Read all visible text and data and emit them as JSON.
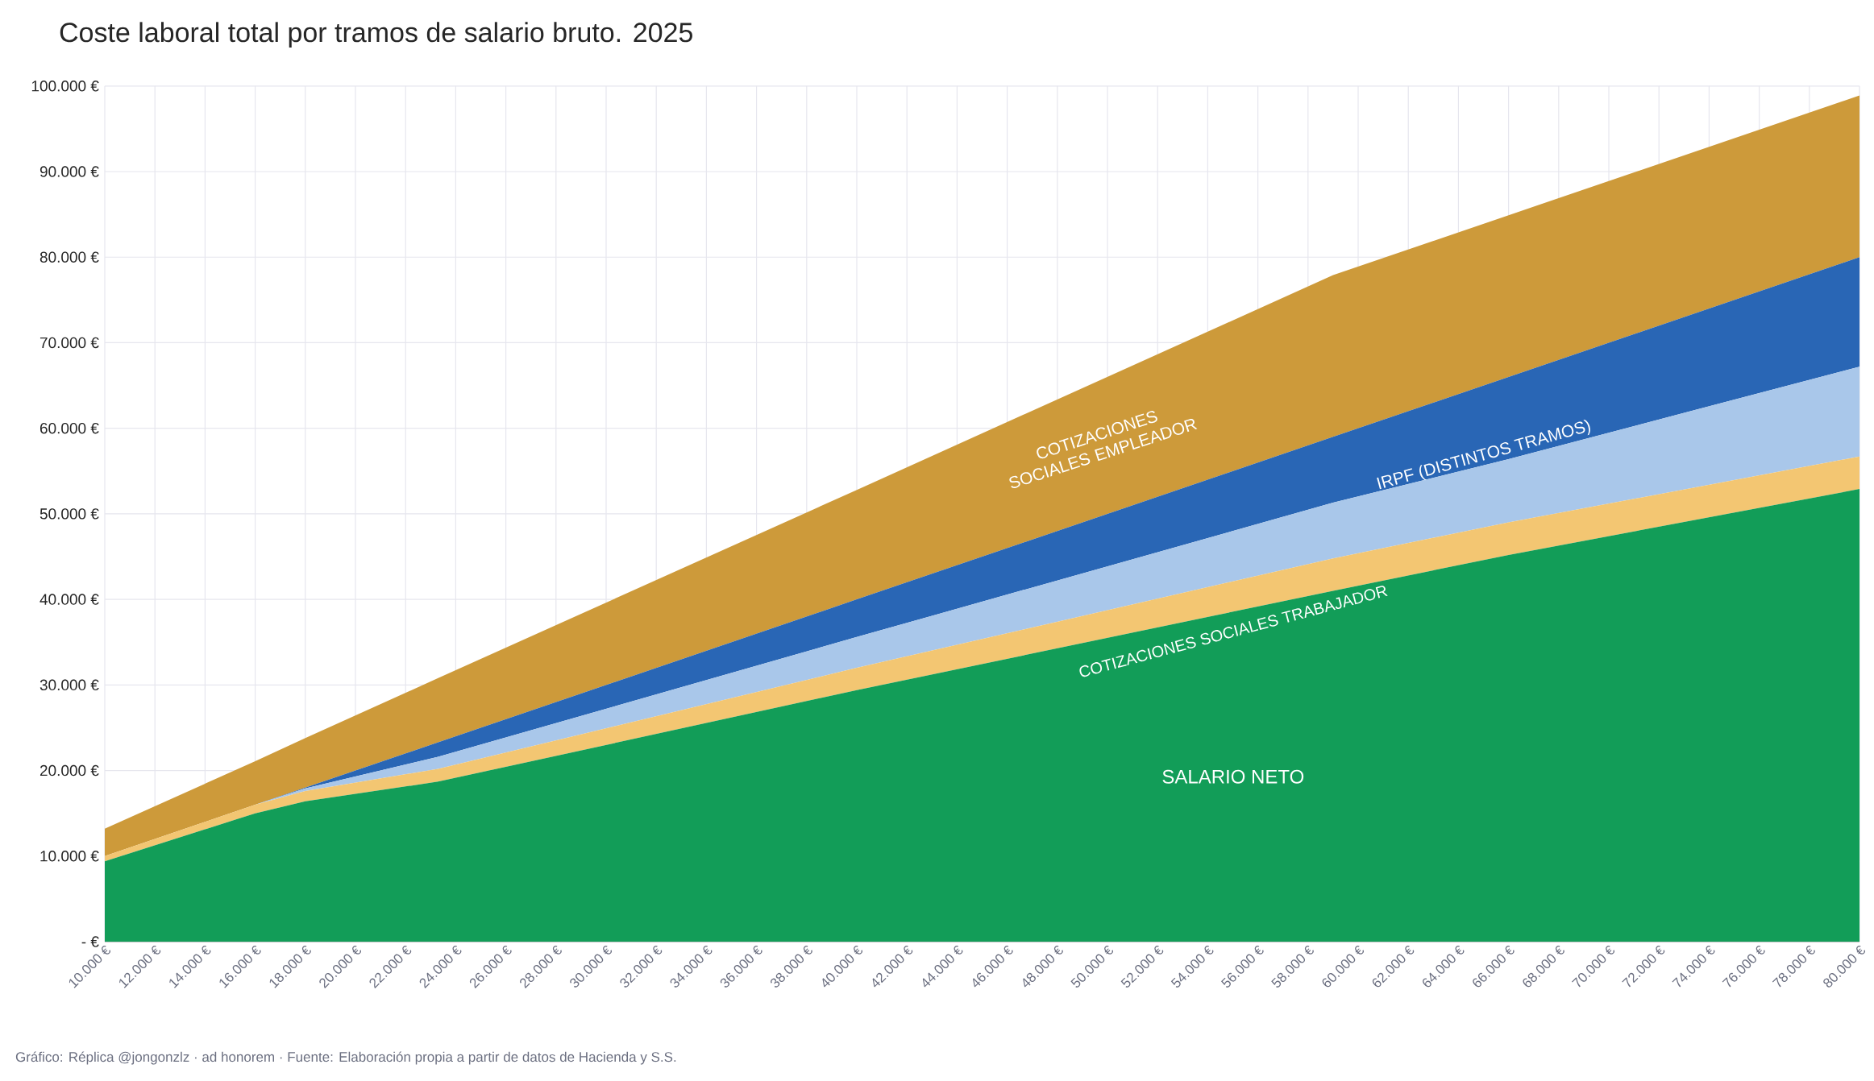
{
  "chart_data": {
    "type": "area",
    "stacked": true,
    "title": "Coste laboral total por tramos de salario bruto. 2025",
    "x": [
      10000,
      16000,
      18000,
      23300,
      40000,
      59000,
      66000,
      80000
    ],
    "series": [
      {
        "name": "SALARIO NETO",
        "color": "#129d58",
        "values": [
          9400,
          15000,
          16400,
          18700,
          29400,
          41000,
          45200,
          52900
        ]
      },
      {
        "name": "COTIZACIONES SOCIALES TRABAJADOR",
        "color": "#f3c672",
        "values": [
          600,
          1000,
          1200,
          1500,
          2600,
          3800,
          3800,
          3800
        ]
      },
      {
        "color": "#a9c7ea",
        "values": [
          0,
          0,
          300,
          1400,
          3600,
          6500,
          7400,
          10500
        ]
      },
      {
        "name": "IRPF (DISTINTOS TRAMOS)",
        "color": "#2966b5",
        "values": [
          0,
          0,
          100,
          1700,
          4400,
          7700,
          9600,
          12800
        ]
      },
      {
        "name": "COTIZACIONES SOCIALES EMPLEADOR",
        "color": "#cd9a3a",
        "values": [
          3200,
          5100,
          5800,
          7500,
          12800,
          18900,
          18900,
          18900
        ]
      }
    ],
    "xlim": [
      10000,
      80000
    ],
    "xticks": [
      {
        "value": 10000,
        "label": "10.000 €"
      },
      {
        "value": 12000,
        "label": "12.000 €"
      },
      {
        "value": 14000,
        "label": "14.000 €"
      },
      {
        "value": 16000,
        "label": "16.000 €"
      },
      {
        "value": 18000,
        "label": "18.000 €"
      },
      {
        "value": 20000,
        "label": "20.000 €"
      },
      {
        "value": 22000,
        "label": "22.000 €"
      },
      {
        "value": 24000,
        "label": "24.000 €"
      },
      {
        "value": 26000,
        "label": "26.000 €"
      },
      {
        "value": 28000,
        "label": "28.000 €"
      },
      {
        "value": 30000,
        "label": "30.000 €"
      },
      {
        "value": 32000,
        "label": "32.000 €"
      },
      {
        "value": 34000,
        "label": "34.000 €"
      },
      {
        "value": 36000,
        "label": "36.000 €"
      },
      {
        "value": 38000,
        "label": "38.000 €"
      },
      {
        "value": 40000,
        "label": "40.000 €"
      },
      {
        "value": 42000,
        "label": "42.000 €"
      },
      {
        "value": 44000,
        "label": "44.000 €"
      },
      {
        "value": 46000,
        "label": "46.000 €"
      },
      {
        "value": 48000,
        "label": "48.000 €"
      },
      {
        "value": 50000,
        "label": "50.000 €"
      },
      {
        "value": 52000,
        "label": "52.000 €"
      },
      {
        "value": 54000,
        "label": "54.000 €"
      },
      {
        "value": 56000,
        "label": "56.000 €"
      },
      {
        "value": 58000,
        "label": "58.000 €"
      },
      {
        "value": 60000,
        "label": "60.000 €"
      },
      {
        "value": 62000,
        "label": "62.000 €"
      },
      {
        "value": 64000,
        "label": "64.000 €"
      },
      {
        "value": 66000,
        "label": "66.000 €"
      },
      {
        "value": 68000,
        "label": "68.000 €"
      },
      {
        "value": 70000,
        "label": "70.000 €"
      },
      {
        "value": 72000,
        "label": "72.000 €"
      },
      {
        "value": 74000,
        "label": "74.000 €"
      },
      {
        "value": 76000,
        "label": "76.000 €"
      },
      {
        "value": 78000,
        "label": "78.000 €"
      },
      {
        "value": 80000,
        "label": "80.000 €"
      }
    ],
    "ylim": [
      0,
      100000
    ],
    "yticks": [
      {
        "value": 0,
        "label": "- €"
      },
      {
        "value": 10000,
        "label": "10.000 €"
      },
      {
        "value": 20000,
        "label": "20.000 €"
      },
      {
        "value": 30000,
        "label": "30.000 €"
      },
      {
        "value": 40000,
        "label": "40.000 €"
      },
      {
        "value": 50000,
        "label": "50.000 €"
      },
      {
        "value": 60000,
        "label": "60.000 €"
      },
      {
        "value": 70000,
        "label": "70.000 €"
      },
      {
        "value": 80000,
        "label": "80.000 €"
      },
      {
        "value": 90000,
        "label": "90.000 €"
      },
      {
        "value": 100000,
        "label": "100.000 €"
      }
    ],
    "grid": true,
    "annotations": [
      "Gráfico: Réplica @jongonzlz · ad honorem  ·  Fuente: Elaboración propia a partir de datos de Hacienda y S.S."
    ]
  }
}
